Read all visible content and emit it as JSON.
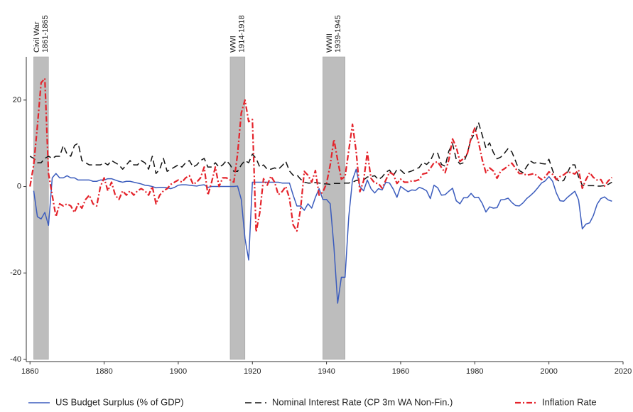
{
  "chart_data": {
    "type": "line",
    "x": [
      1860,
      1861,
      1862,
      1863,
      1864,
      1865,
      1866,
      1867,
      1868,
      1869,
      1870,
      1871,
      1872,
      1873,
      1874,
      1875,
      1876,
      1877,
      1878,
      1879,
      1880,
      1881,
      1882,
      1883,
      1884,
      1885,
      1886,
      1887,
      1888,
      1889,
      1890,
      1891,
      1892,
      1893,
      1894,
      1895,
      1896,
      1897,
      1898,
      1899,
      1900,
      1901,
      1902,
      1903,
      1904,
      1905,
      1906,
      1907,
      1908,
      1909,
      1910,
      1911,
      1912,
      1913,
      1914,
      1915,
      1916,
      1917,
      1918,
      1919,
      1920,
      1921,
      1922,
      1923,
      1924,
      1925,
      1926,
      1927,
      1928,
      1929,
      1930,
      1931,
      1932,
      1933,
      1934,
      1935,
      1936,
      1937,
      1938,
      1939,
      1940,
      1941,
      1942,
      1943,
      1944,
      1945,
      1946,
      1947,
      1948,
      1949,
      1950,
      1951,
      1952,
      1953,
      1954,
      1955,
      1956,
      1957,
      1958,
      1959,
      1960,
      1961,
      1962,
      1963,
      1964,
      1965,
      1966,
      1967,
      1968,
      1969,
      1970,
      1971,
      1972,
      1973,
      1974,
      1975,
      1976,
      1977,
      1978,
      1979,
      1980,
      1981,
      1982,
      1983,
      1984,
      1985,
      1986,
      1987,
      1988,
      1989,
      1990,
      1991,
      1992,
      1993,
      1994,
      1995,
      1996,
      1997,
      1998,
      1999,
      2000,
      2001,
      2002,
      2003,
      2004,
      2005,
      2006,
      2007,
      2008,
      2009,
      2010,
      2011,
      2012,
      2013,
      2014,
      2015,
      2016,
      2017
    ],
    "series": [
      {
        "name": "US Budget Surplus (% of GDP)",
        "color": "#3b5cbd",
        "dash": "solid",
        "values": [
          null,
          -1,
          -7,
          -7.5,
          -6,
          -9,
          2,
          3,
          2,
          2,
          2.5,
          2,
          2,
          1.5,
          1.5,
          1.5,
          1.5,
          1.2,
          1.2,
          1.5,
          1.5,
          1.8,
          1.8,
          1.5,
          1.2,
          1,
          1.2,
          1.2,
          1,
          0.8,
          0.6,
          0.3,
          0.2,
          0,
          -0.3,
          -0.2,
          -0.2,
          -0.3,
          -0.5,
          -0.2,
          0.3,
          0.4,
          0.4,
          0.3,
          0.2,
          0.1,
          0.3,
          0.4,
          -0.2,
          0,
          0,
          0,
          0,
          0,
          0,
          0,
          0.1,
          -3,
          -12,
          -17,
          1,
          1,
          1,
          1,
          1,
          1,
          1,
          1,
          0.8,
          0.8,
          0.8,
          -2,
          -4.5,
          -4.5,
          -5.5,
          -4,
          -5,
          -2.5,
          -0.5,
          -3,
          -3,
          -4,
          -14,
          -27,
          -21,
          -21,
          -7,
          1.5,
          4,
          0,
          -1,
          1.5,
          -0.5,
          -1.5,
          -0.5,
          -0.8,
          1,
          0.8,
          -0.6,
          -2.5,
          0,
          -0.6,
          -1.2,
          -0.8,
          -0.9,
          -0.2,
          -0.5,
          -1,
          -2.8,
          0.3,
          -0.3,
          -2,
          -1.9,
          -1.1,
          -0.4,
          -3.3,
          -4,
          -2.6,
          -2.6,
          -1.6,
          -2.6,
          -2.5,
          -3.9,
          -5.9,
          -4.7,
          -5,
          -4.9,
          -3.1,
          -3,
          -2.7,
          -3.7,
          -4.4,
          -4.5,
          -3.8,
          -2.8,
          -2.1,
          -1.3,
          -0.3,
          0.8,
          1.3,
          2.3,
          1.2,
          -1.5,
          -3.3,
          -3.4,
          -2.5,
          -1.8,
          -1.1,
          -3.1,
          -9.8,
          -8.7,
          -8.4,
          -6.7,
          -4.1,
          -2.8,
          -2.4,
          -3.1,
          -3.4
        ]
      },
      {
        "name": "Nominal Interest Rate (CP 3m WA Non-Fin.)",
        "color": "#111111",
        "dash": "dashed",
        "values": [
          7,
          6.5,
          5.5,
          5.5,
          6.5,
          7,
          6.5,
          7,
          7,
          9.5,
          7.5,
          7,
          9.5,
          10,
          6,
          5.5,
          5,
          5,
          5,
          5,
          5.5,
          5,
          6,
          5.5,
          5,
          4,
          5,
          6,
          5,
          5,
          6,
          5.5,
          4,
          7,
          3,
          4,
          6.5,
          3.5,
          4,
          4.5,
          5,
          4.5,
          5.5,
          6,
          4.5,
          5,
          6,
          6.5,
          4.5,
          4.5,
          5.5,
          4.5,
          5,
          6,
          5,
          3.5,
          3.5,
          5,
          6,
          5.5,
          7.5,
          6.5,
          4.5,
          5,
          4,
          4,
          4.3,
          4,
          4.8,
          5.8,
          3.6,
          2.6,
          2.7,
          1.7,
          1,
          0.8,
          0.8,
          0.9,
          0.8,
          0.6,
          0.6,
          0.5,
          0.7,
          0.7,
          0.7,
          0.8,
          0.8,
          1,
          1.4,
          1.5,
          1.5,
          2.2,
          2.3,
          2.5,
          1.6,
          2.2,
          3.3,
          3.8,
          2.5,
          3.9,
          3.8,
          3,
          3.3,
          3.6,
          4,
          4.4,
          5.6,
          5.1,
          5.9,
          7.8,
          7.7,
          5.1,
          4.7,
          8.2,
          9.9,
          6.3,
          5.2,
          5.5,
          7.8,
          10.9,
          12.3,
          14.8,
          11.9,
          8.9,
          10.1,
          7.9,
          6.4,
          6.8,
          7.7,
          8.8,
          8,
          5.9,
          3.7,
          3.2,
          4.6,
          5.9,
          5.4,
          5.6,
          5.3,
          5.2,
          6.3,
          3.7,
          1.7,
          1.1,
          1.4,
          3.2,
          5,
          5,
          2.2,
          0.3,
          0.2,
          0.2,
          0.2,
          0.1,
          0.1,
          0.2,
          0.5,
          1
        ]
      },
      {
        "name": "Inflation Rate",
        "color": "#e4232b",
        "dash": "dashdot",
        "values": [
          0,
          5,
          14,
          24,
          25,
          3,
          -2,
          -7,
          -4,
          -4.5,
          -4,
          -4.5,
          -6,
          -4,
          -5,
          -3,
          -2,
          -4,
          -4.5,
          0,
          2,
          -1,
          1,
          -2,
          -3,
          -1,
          -2,
          -1,
          -2,
          -1,
          -0.5,
          -1,
          -2,
          0,
          -4,
          -2,
          -1,
          -0.5,
          0.5,
          1,
          1.5,
          1,
          2,
          2.5,
          0.5,
          1,
          2,
          4.5,
          -2,
          1,
          4.5,
          0,
          2,
          2,
          1.5,
          1,
          7.5,
          17,
          20,
          15,
          15.5,
          -10.5,
          -6,
          1.8,
          0.3,
          2.4,
          1,
          -1.9,
          -1.2,
          0,
          -2.7,
          -8.9,
          -10.3,
          -5.2,
          3.5,
          2.6,
          1,
          3.7,
          -2,
          -1.3,
          0.7,
          5,
          10.9,
          6.1,
          1.7,
          2.3,
          8.3,
          14.4,
          8.1,
          -1.2,
          1.3,
          7.9,
          1.9,
          0.8,
          0.7,
          -0.4,
          1.5,
          3.3,
          2.8,
          0.7,
          1.7,
          1,
          1,
          1.3,
          1.3,
          1.6,
          2.9,
          3.1,
          4.2,
          5.5,
          5.7,
          4.4,
          3.2,
          6.2,
          11,
          9.1,
          5.8,
          6.5,
          7.6,
          11.3,
          13.5,
          10.3,
          6.2,
          3.2,
          4.3,
          3.6,
          1.9,
          3.6,
          4.1,
          4.8,
          5.4,
          4.2,
          3,
          3,
          2.6,
          2.8,
          3,
          2.3,
          1.6,
          2.2,
          3.4,
          2.8,
          1.6,
          2.3,
          2.7,
          3.4,
          3.2,
          2.9,
          3.8,
          -0.4,
          1.6,
          3.2,
          2.1,
          1.5,
          1.6,
          0.1,
          1.3,
          2.1
        ]
      }
    ],
    "shaded_periods": [
      {
        "label": "Civil War",
        "period": "1861-1865",
        "start": 1861,
        "end": 1865
      },
      {
        "label": "WWI",
        "period": "1914-1918",
        "start": 1914,
        "end": 1918
      },
      {
        "label": "WWII",
        "period": "1939-1945",
        "start": 1939,
        "end": 1945
      }
    ],
    "shade_color": "#bdbdbd",
    "xlim": [
      1859,
      2020
    ],
    "xticks": [
      1860,
      1880,
      1900,
      1920,
      1940,
      1960,
      1980,
      2000,
      2020
    ],
    "ylim": [
      -40.5,
      30
    ],
    "yticks": [
      -40,
      -20,
      0,
      20
    ],
    "grid": false,
    "legend": "bottom"
  }
}
